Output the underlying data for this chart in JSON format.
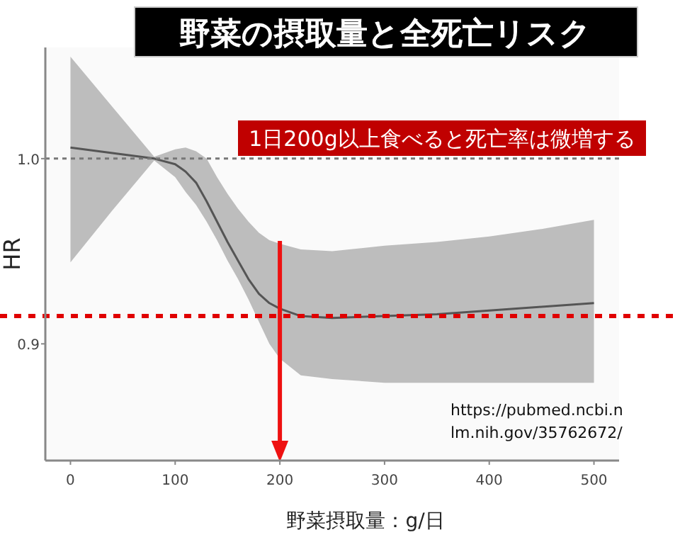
{
  "chart_data": {
    "type": "line",
    "title": "野菜の摂取量と全死亡リスク",
    "xlabel": "野菜摂取量：g/日",
    "ylabel": "HR",
    "x": [
      0,
      40,
      80,
      100,
      110,
      120,
      130,
      140,
      150,
      160,
      170,
      180,
      190,
      200,
      220,
      250,
      300,
      350,
      400,
      450,
      500
    ],
    "series": [
      {
        "color": "#555555",
        "values": [
          1.006,
          1.003,
          1.0,
          0.997,
          0.993,
          0.987,
          0.977,
          0.966,
          0.955,
          0.945,
          0.935,
          0.927,
          0.922,
          0.919,
          0.915,
          0.914,
          0.915,
          0.916,
          0.918,
          0.92,
          0.922
        ],
        "lower": [
          0.944,
          0.972,
          0.999,
          0.99,
          0.982,
          0.975,
          0.966,
          0.956,
          0.945,
          0.935,
          0.924,
          0.912,
          0.9,
          0.892,
          0.883,
          0.881,
          0.879,
          0.879,
          0.879,
          0.879,
          0.879
        ],
        "upper": [
          1.055,
          1.028,
          1.001,
          1.005,
          1.006,
          1.004,
          1.0,
          0.99,
          0.981,
          0.973,
          0.966,
          0.96,
          0.956,
          0.954,
          0.951,
          0.95,
          0.953,
          0.955,
          0.958,
          0.962,
          0.967
        ]
      }
    ],
    "xlim": [
      -24,
      524
    ],
    "ylim": [
      0.837,
      1.06
    ],
    "xticks": [
      0,
      100,
      200,
      300,
      400,
      500
    ],
    "yticks": [
      {
        "value": 0.9,
        "label": "0.9"
      },
      {
        "value": 1.0,
        "label": "1.0"
      }
    ],
    "grid": false,
    "marker": "none",
    "line_style": "solid",
    "ref_lines": [
      {
        "axis": "y",
        "value": 1.0,
        "color": "#777777",
        "line_style": "dotted"
      },
      {
        "axis": "y",
        "value": 0.915,
        "color": "#e00000",
        "line_style": "dotted"
      },
      {
        "axis": "x",
        "value": 200,
        "color": "#ee1111",
        "line_style": "solid"
      }
    ],
    "annotations": [
      "1日200g以上食べると死亡率は微増する",
      "https://pubmed.ncbi.nlm.nih.gov/35762672/"
    ]
  }
}
